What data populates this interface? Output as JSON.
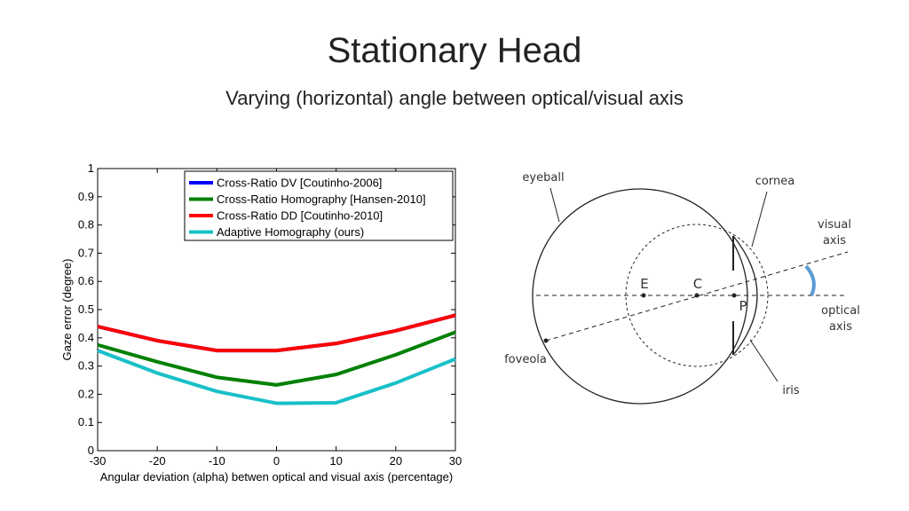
{
  "header": {
    "title": "Stationary Head",
    "subtitle": "Varying (horizontal) angle between optical/visual axis"
  },
  "chart_data": {
    "type": "line",
    "x": [
      -30,
      -20,
      -10,
      0,
      10,
      20,
      30
    ],
    "series": [
      {
        "name": "Cross-Ratio DV [Coutinho-2006]",
        "color": "#0000ff",
        "values": [
          0.44,
          0.39,
          0.355,
          0.355,
          0.38,
          0.425,
          0.48
        ]
      },
      {
        "name": "Cross-Ratio Homography [Hansen-2010]",
        "color": "#008000",
        "values": [
          0.375,
          0.315,
          0.26,
          0.233,
          0.27,
          0.34,
          0.42
        ]
      },
      {
        "name": "Cross-Ratio DD [Coutinho-2010]",
        "color": "#ff0000",
        "values": [
          0.44,
          0.39,
          0.355,
          0.355,
          0.38,
          0.425,
          0.48
        ]
      },
      {
        "name": "Adaptive Homography (ours)",
        "color": "#19c0c8",
        "values": [
          0.355,
          0.275,
          0.21,
          0.168,
          0.17,
          0.24,
          0.325
        ]
      }
    ],
    "xlim": [
      -30,
      30
    ],
    "xticks": [
      -30,
      -20,
      -10,
      0,
      10,
      20,
      30
    ],
    "ylim": [
      0,
      1
    ],
    "yticks": [
      0,
      0.1,
      0.2,
      0.3,
      0.4,
      0.5,
      0.6,
      0.7,
      0.8,
      0.9,
      1
    ],
    "x_label": "Angular deviation (alpha) betwen optical and visual axis (percentage)",
    "y_label": "Gaze error (degree)",
    "legend": "upper right"
  },
  "diagram": {
    "eyeball": "eyeball",
    "cornea": "cornea",
    "visual_axis": [
      "visual",
      "axis"
    ],
    "optical_axis": [
      "optical",
      "axis"
    ],
    "foveola": "foveola",
    "iris": "iris",
    "E": "E",
    "C": "C",
    "P": "P"
  }
}
